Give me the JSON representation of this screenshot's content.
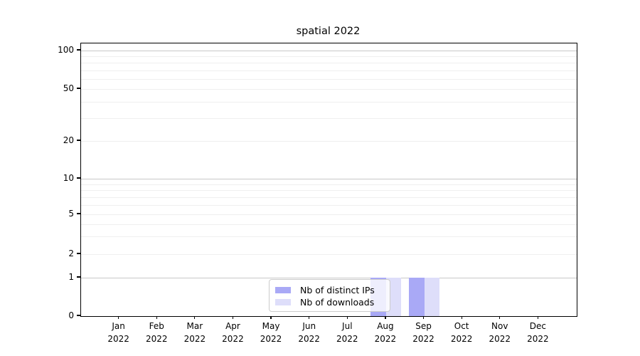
{
  "title": "spatial 2022",
  "legend": {
    "items": [
      {
        "label": "Nb of distinct IPs",
        "color": "#a9a9f6"
      },
      {
        "label": "Nb of downloads",
        "color": "#dedefa"
      }
    ]
  },
  "chart_data": {
    "type": "bar",
    "title": "spatial 2022",
    "categories": [
      "Jan 2022",
      "Feb 2022",
      "Mar 2022",
      "Apr 2022",
      "May 2022",
      "Jun 2022",
      "Jul 2022",
      "Aug 2022",
      "Sep 2022",
      "Oct 2022",
      "Nov 2022",
      "Dec 2022"
    ],
    "series": [
      {
        "name": "Nb of distinct IPs",
        "color": "#a9a9f6",
        "values": [
          0,
          0,
          0,
          0,
          0,
          0,
          0,
          1,
          1,
          0,
          0,
          0
        ]
      },
      {
        "name": "Nb of downloads",
        "color": "#dedefa",
        "values": [
          0,
          0,
          0,
          0,
          0,
          0,
          0,
          1,
          1,
          0,
          0,
          0
        ]
      }
    ],
    "xlabel": "",
    "ylabel": "",
    "yscale": "symlog",
    "ylim": [
      0,
      115
    ],
    "yticks": [
      0,
      1,
      2,
      5,
      10,
      20,
      50,
      100
    ],
    "grid": {
      "major_values": [
        1,
        10,
        100
      ],
      "minor_values": [
        2,
        3,
        4,
        5,
        6,
        7,
        8,
        9,
        20,
        30,
        40,
        50,
        60,
        70,
        80,
        90
      ]
    },
    "legend_position": "lower center",
    "legend_frame": true,
    "bar_group_width_fraction": 0.8
  },
  "colors": {
    "grid_major": "#c8c8c8",
    "grid_minor": "#efefef",
    "spine": "#000000",
    "legend_border": "#cccccc",
    "legend_bg": "rgba(255,255,255,0.8)"
  }
}
